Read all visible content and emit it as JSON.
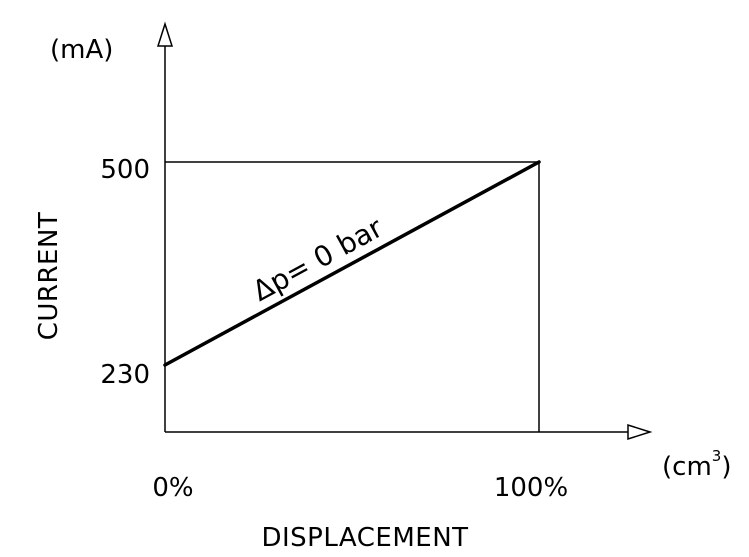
{
  "chart_data": {
    "type": "line",
    "xlabel": "DISPLACEMENT",
    "ylabel": "CURRENT",
    "x_unit": "(cm",
    "x_unit_superscript": "3",
    "x_unit_close": ")",
    "y_unit": "(mA)",
    "x_ticks": [
      "0%",
      "100%"
    ],
    "y_ticks": [
      "230",
      "500"
    ],
    "xlim": [
      0,
      100
    ],
    "ylim": [
      230,
      500
    ],
    "series": [
      {
        "x": [
          0,
          100
        ],
        "y": [
          230,
          500
        ]
      }
    ],
    "annotation": "Δp= 0 bar",
    "grid": false,
    "colors": {
      "line": "#000000",
      "axes": "#000000"
    }
  }
}
